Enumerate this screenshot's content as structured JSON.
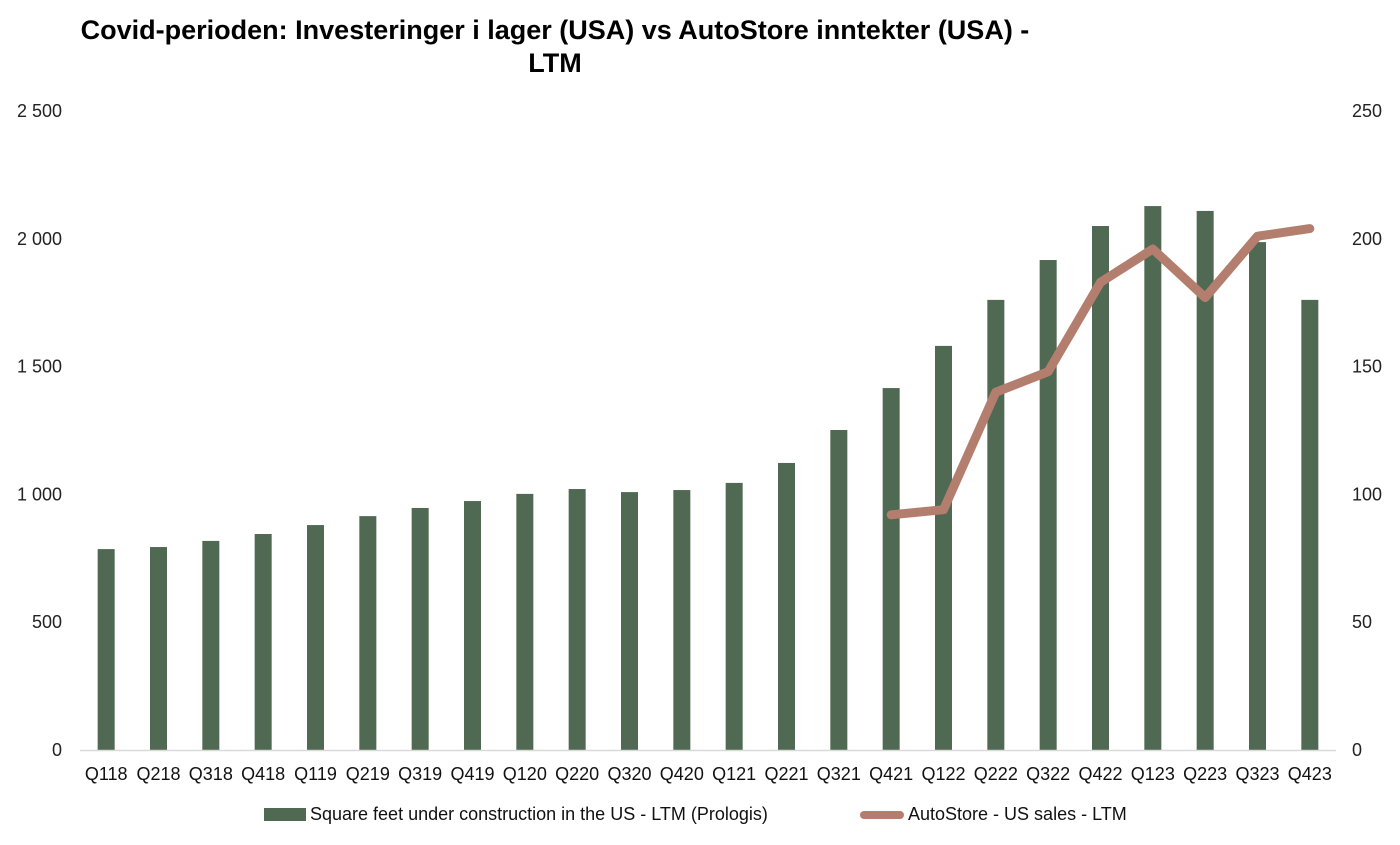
{
  "chart_data": {
    "type": "bar",
    "title_line1": "Covid-perioden: Investeringer i lager (USA) vs AutoStore inntekter (USA) -",
    "title_line2": "LTM",
    "categories": [
      "Q118",
      "Q218",
      "Q318",
      "Q418",
      "Q119",
      "Q219",
      "Q319",
      "Q419",
      "Q120",
      "Q220",
      "Q320",
      "Q420",
      "Q121",
      "Q221",
      "Q321",
      "Q421",
      "Q122",
      "Q222",
      "Q322",
      "Q422",
      "Q123",
      "Q223",
      "Q323",
      "Q423"
    ],
    "series": [
      {
        "name": "Square feet under construction in the US - LTM (Prologis)",
        "type": "bar",
        "axis": "left",
        "color": "#4f6952",
        "values": [
          786,
          794,
          818,
          845,
          880,
          915,
          947,
          974,
          1002,
          1021,
          1009,
          1017,
          1045,
          1123,
          1252,
          1416,
          1581,
          1761,
          1917,
          2050,
          2128,
          2109,
          1987,
          1761
        ]
      },
      {
        "name": "AutoStore - US sales - LTM",
        "type": "line",
        "axis": "right",
        "color": "#b47e6e",
        "values": [
          null,
          null,
          null,
          null,
          null,
          null,
          null,
          null,
          null,
          null,
          null,
          null,
          null,
          null,
          null,
          92,
          94,
          140,
          148,
          183,
          196,
          177,
          201,
          204
        ]
      }
    ],
    "y_left": {
      "ylim": [
        0,
        2500
      ],
      "ticks": [
        0,
        500,
        1000,
        1500,
        2000,
        2500
      ],
      "tick_labels": [
        "0",
        "500",
        "1 000",
        "1 500",
        "2 000",
        "2 500"
      ]
    },
    "y_right": {
      "ylim": [
        0,
        250
      ],
      "ticks": [
        0,
        50,
        100,
        150,
        200,
        250
      ],
      "tick_labels": [
        "0",
        "50",
        "100",
        "150",
        "200",
        "250"
      ]
    },
    "grid": false,
    "legend_position": "bottom"
  }
}
